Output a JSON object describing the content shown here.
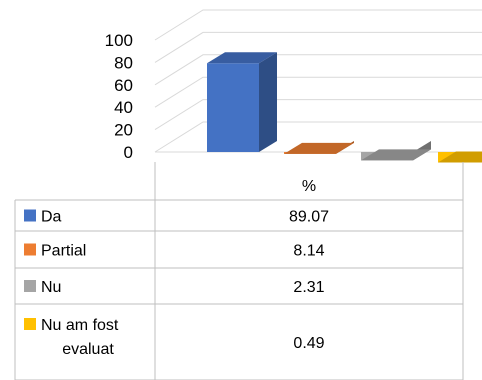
{
  "chart_data": {
    "type": "bar",
    "style": "3d-column-with-data-table",
    "column_header": "%",
    "categories": [
      "Da",
      "Partial",
      "Nu",
      "Nu am fost evaluat"
    ],
    "category_lines": [
      [
        "Da"
      ],
      [
        "Partial"
      ],
      [
        "Nu"
      ],
      [
        "Nu am fost",
        "evaluat"
      ]
    ],
    "values": [
      89.07,
      8.14,
      2.31,
      0.49
    ],
    "value_labels": [
      "89.07",
      "8.14",
      "2.31",
      "0.49"
    ],
    "colors": [
      "#4472C4",
      "#ED7D31",
      "#A5A5A5",
      "#FFC000"
    ],
    "yticks": [
      0,
      20,
      40,
      60,
      80,
      100
    ],
    "ylim": [
      0,
      100
    ],
    "grid": true
  }
}
